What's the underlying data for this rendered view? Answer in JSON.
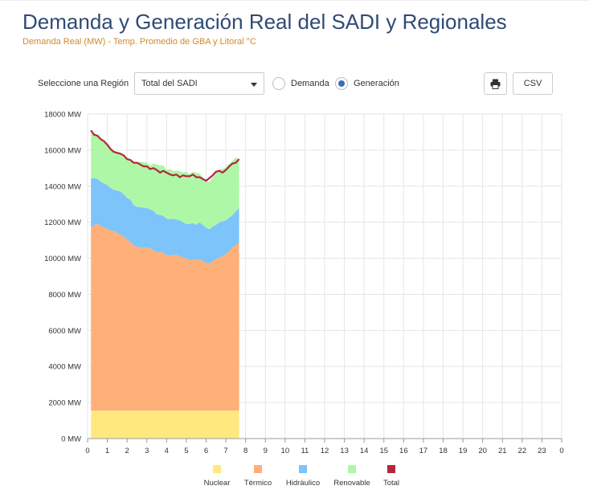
{
  "header": {
    "title": "Demanda y Generación Real del SADI y Regionales",
    "subtitle": "Demanda Real (MW) - Temp. Promedio de GBA y Litoral °C"
  },
  "controls": {
    "region_label": "Seleccione una Región",
    "region_value": "Total del SADI",
    "radio_demanda": "Demanda",
    "radio_generacion": "Generación",
    "selected": "Generación",
    "print_icon": "printer-icon",
    "csv_label": "CSV"
  },
  "chart_data": {
    "type": "area",
    "stacked": true,
    "x_tick_labels": [
      "0",
      "1",
      "2",
      "3",
      "4",
      "5",
      "6",
      "7",
      "8",
      "9",
      "10",
      "11",
      "12",
      "13",
      "14",
      "15",
      "16",
      "17",
      "18",
      "19",
      "20",
      "21",
      "22",
      "23",
      "0"
    ],
    "y_tick_labels": [
      "0 MW",
      "2000 MW",
      "4000 MW",
      "6000 MW",
      "8000 MW",
      "10000 MW",
      "12000 MW",
      "14000 MW",
      "16000 MW",
      "18000 MW"
    ],
    "xlim": [
      0,
      24
    ],
    "ylim": [
      0,
      18000
    ],
    "grid": true,
    "legend_position": "bottom",
    "x": [
      0.17,
      0.33,
      0.5,
      0.67,
      0.83,
      1.0,
      1.17,
      1.33,
      1.5,
      1.67,
      1.83,
      2.0,
      2.17,
      2.33,
      2.5,
      2.67,
      2.83,
      3.0,
      3.17,
      3.33,
      3.5,
      3.67,
      3.83,
      4.0,
      4.17,
      4.33,
      4.5,
      4.67,
      4.83,
      5.0,
      5.17,
      5.33,
      5.5,
      5.67,
      5.83,
      6.0,
      6.17,
      6.33,
      6.5,
      6.67,
      6.83,
      7.0,
      7.17,
      7.33,
      7.5,
      7.67
    ],
    "series": [
      {
        "name": "Nuclear",
        "color": "#ffe97f",
        "values": [
          1550,
          1550,
          1550,
          1550,
          1550,
          1550,
          1550,
          1550,
          1550,
          1550,
          1550,
          1550,
          1550,
          1550,
          1550,
          1550,
          1550,
          1550,
          1550,
          1550,
          1550,
          1550,
          1550,
          1550,
          1550,
          1550,
          1550,
          1550,
          1550,
          1550,
          1550,
          1550,
          1550,
          1550,
          1550,
          1550,
          1550,
          1550,
          1550,
          1550,
          1550,
          1550,
          1550,
          1550,
          1550,
          1550
        ]
      },
      {
        "name": "Térmico",
        "color": "#ffaf78",
        "values": [
          10150,
          10300,
          10350,
          10250,
          10150,
          10100,
          10000,
          9950,
          9850,
          9750,
          9650,
          9500,
          9350,
          9150,
          9100,
          9050,
          9050,
          9050,
          9000,
          8900,
          8800,
          8800,
          8750,
          8650,
          8600,
          8650,
          8650,
          8550,
          8500,
          8450,
          8350,
          8400,
          8350,
          8400,
          8300,
          8200,
          8150,
          8300,
          8400,
          8500,
          8550,
          8700,
          8850,
          9050,
          9200,
          9300
        ]
      },
      {
        "name": "Hidráulico",
        "color": "#7cc4fa",
        "values": [
          2750,
          2600,
          2500,
          2450,
          2450,
          2400,
          2350,
          2300,
          2350,
          2400,
          2350,
          2300,
          2350,
          2250,
          2200,
          2250,
          2200,
          2200,
          2150,
          2200,
          2100,
          2050,
          2050,
          2000,
          2000,
          2000,
          1950,
          2000,
          1950,
          1900,
          2000,
          2000,
          1950,
          2050,
          2000,
          1950,
          1900,
          1900,
          1900,
          1950,
          1950,
          1850,
          1850,
          1800,
          1850,
          1950
        ]
      },
      {
        "name": "Renovable",
        "color": "#adf7a7",
        "values": [
          2500,
          2500,
          2400,
          2350,
          2300,
          2250,
          2200,
          2150,
          2150,
          2150,
          2200,
          2200,
          2250,
          2400,
          2500,
          2500,
          2550,
          2500,
          2450,
          2600,
          2750,
          2750,
          2800,
          2700,
          2800,
          2650,
          2700,
          2750,
          2750,
          2900,
          2750,
          2850,
          2900,
          2700,
          2650,
          2550,
          2650,
          2750,
          2900,
          2950,
          2900,
          2950,
          3000,
          3000,
          3000,
          2700
        ]
      },
      {
        "name": "Total",
        "color": "#b5273a",
        "values": [
          17100,
          16850,
          16800,
          16600,
          16500,
          16300,
          16050,
          15900,
          15850,
          15800,
          15700,
          15500,
          15450,
          15300,
          15300,
          15200,
          15100,
          15100,
          14950,
          15000,
          14900,
          14750,
          14850,
          14750,
          14650,
          14600,
          14650,
          14500,
          14600,
          14550,
          14550,
          14650,
          14500,
          14500,
          14400,
          14300,
          14450,
          14600,
          14800,
          14850,
          14750,
          14900,
          15100,
          15250,
          15300,
          15500
        ]
      }
    ]
  }
}
